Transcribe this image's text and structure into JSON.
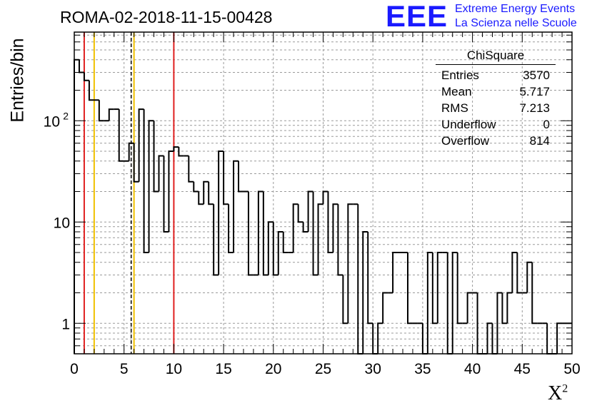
{
  "title": "ROMA-02-2018-11-15-00428",
  "logo": {
    "mark": "EEE",
    "line1": "Extreme Energy Events",
    "line2": "La Scienza nelle Scuole",
    "color": "#1a1aff"
  },
  "stats": {
    "name": "ChiSquare",
    "rows": [
      {
        "label": "Entries",
        "value": "3570"
      },
      {
        "label": "Mean",
        "value": "5.717"
      },
      {
        "label": "RMS",
        "value": "7.213"
      },
      {
        "label": "Underflow",
        "value": "0"
      },
      {
        "label": "Overflow",
        "value": "814"
      }
    ]
  },
  "chart_data": {
    "type": "bar",
    "histogram": "step",
    "ylabel": "Entries/bin",
    "xlabel": "X",
    "xlabel_superscript": "2",
    "xlim": [
      0,
      50
    ],
    "ylim": [
      0.5,
      750
    ],
    "yscale": "log",
    "grid": true,
    "bin_width": 0.5,
    "x_ticks": [
      "0",
      "5",
      "10",
      "15",
      "20",
      "25",
      "30",
      "35",
      "40",
      "45",
      "50"
    ],
    "y_ticks": [
      {
        "value": 1,
        "label": "1"
      },
      {
        "value": 10,
        "label": "10"
      },
      {
        "value": 100,
        "label": "10",
        "sup": "2"
      }
    ],
    "values": [
      400,
      300,
      250,
      160,
      160,
      100,
      100,
      130,
      130,
      40,
      40,
      60,
      25,
      130,
      5,
      100,
      20,
      45,
      8,
      50,
      55,
      45,
      45,
      25,
      20,
      15,
      25,
      15,
      3,
      50,
      15,
      5,
      40,
      20,
      20,
      3,
      3,
      20,
      3,
      10,
      3,
      8,
      5,
      5,
      15,
      10,
      8,
      20,
      3,
      15,
      20,
      5,
      15,
      3,
      1,
      15,
      15,
      0.3,
      8,
      1,
      0.3,
      1,
      2,
      2,
      5,
      5,
      5,
      1,
      1,
      1,
      0.3,
      5,
      1,
      5,
      5,
      0.3,
      5,
      1,
      1,
      2,
      2,
      0.3,
      0.3,
      1,
      0.3,
      2,
      1,
      2,
      5,
      2,
      2,
      4,
      1,
      1,
      1,
      0.3,
      0.3,
      1,
      1,
      1
    ],
    "vertical_lines": [
      {
        "x": 1,
        "color": "#e02020",
        "style": "solid"
      },
      {
        "x": 2,
        "color": "#f0c000",
        "style": "solid"
      },
      {
        "x": 5.717,
        "color": "#000000",
        "style": "dashed"
      },
      {
        "x": 6,
        "color": "#f0c000",
        "style": "solid"
      },
      {
        "x": 10,
        "color": "#e02020",
        "style": "solid"
      }
    ]
  }
}
